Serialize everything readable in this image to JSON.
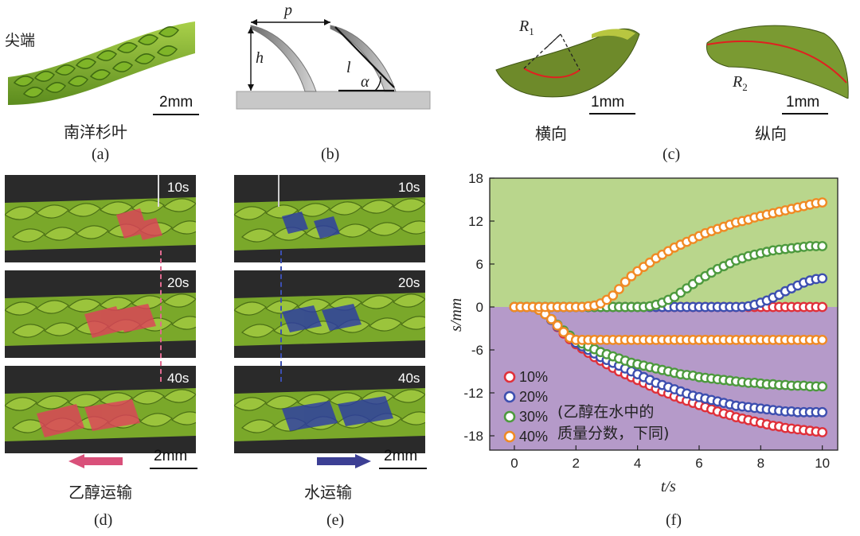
{
  "panel_a": {
    "tip_label": "尖端",
    "scale": "2mm",
    "name": "南洋杉叶",
    "caption": "(a)"
  },
  "panel_b": {
    "p": "p",
    "h": "h",
    "l": "l",
    "alpha": "α",
    "caption": "(b)"
  },
  "panel_c": {
    "r1": "R",
    "r1_sub": "1",
    "r2": "R",
    "r2_sub": "2",
    "scale1": "1mm",
    "scale2": "1mm",
    "transverse": "横向",
    "longitudinal": "纵向",
    "caption": "(c)"
  },
  "panel_d": {
    "times": [
      "10s",
      "20s",
      "40s"
    ],
    "scale": "2mm",
    "label": "乙醇运输",
    "caption": "(d)",
    "arrow_color": "#d9507a"
  },
  "panel_e": {
    "times": [
      "10s",
      "20s",
      "40s"
    ],
    "scale": "2mm",
    "label": "水运输",
    "caption": "(e)",
    "arrow_color": "#3c3f94"
  },
  "panel_f": {
    "caption": "(f)",
    "note_line1": "(乙醇在水中的",
    "note_line2": "质量分数，下同)"
  },
  "chart_data": {
    "type": "scatter",
    "xlabel": "t/s",
    "ylabel": "s/mm",
    "xlim": [
      -0.8,
      10.5
    ],
    "ylim": [
      -20,
      18
    ],
    "xticks": [
      0,
      2,
      4,
      6,
      8,
      10
    ],
    "yticks": [
      18,
      12,
      6,
      0,
      -6,
      -12,
      -18
    ],
    "background_top": "#b9d68c",
    "background_bottom": "#b59ac9",
    "legend_position": "bottom-left",
    "x": [
      0,
      0.2,
      0.4,
      0.6,
      0.8,
      1.0,
      1.2,
      1.4,
      1.6,
      1.8,
      2.0,
      2.2,
      2.4,
      2.6,
      2.8,
      3.0,
      3.2,
      3.4,
      3.6,
      3.8,
      4.0,
      4.2,
      4.4,
      4.6,
      4.8,
      5.0,
      5.2,
      5.4,
      5.6,
      5.8,
      6.0,
      6.2,
      6.4,
      6.6,
      6.8,
      7.0,
      7.2,
      7.4,
      7.6,
      7.8,
      8.0,
      8.2,
      8.4,
      8.6,
      8.8,
      9.0,
      9.2,
      9.4,
      9.6,
      9.8,
      10.0
    ],
    "series": [
      {
        "name": "10%",
        "color": "#e0303a",
        "pos": [
          0,
          0,
          0,
          0,
          0,
          0,
          0,
          0,
          0,
          0,
          0,
          0,
          0,
          0,
          0,
          0,
          0,
          0,
          0,
          0,
          0,
          0,
          0,
          0,
          0,
          0,
          0,
          0,
          0,
          0,
          0,
          0,
          0,
          0,
          0,
          0,
          0,
          0,
          0,
          0,
          0,
          0,
          0,
          0,
          0,
          0,
          0,
          0,
          0,
          0,
          0
        ],
        "neg": [
          0,
          0,
          0,
          0,
          -0.4,
          -1.0,
          -1.8,
          -2.8,
          -3.7,
          -4.5,
          -5.2,
          -5.8,
          -6.4,
          -7.0,
          -7.5,
          -8.0,
          -8.5,
          -9.0,
          -9.4,
          -9.8,
          -10.2,
          -10.6,
          -11.0,
          -11.4,
          -11.8,
          -12.1,
          -12.5,
          -12.8,
          -13.1,
          -13.4,
          -13.7,
          -14.0,
          -14.3,
          -14.6,
          -14.9,
          -15.1,
          -15.4,
          -15.6,
          -15.8,
          -16.0,
          -16.2,
          -16.4,
          -16.6,
          -16.7,
          -16.9,
          -17.0,
          -17.1,
          -17.2,
          -17.3,
          -17.4,
          -17.5
        ]
      },
      {
        "name": "20%",
        "color": "#3d4fb0",
        "pos": [
          0,
          0,
          0,
          0,
          0,
          0,
          0,
          0,
          0,
          0,
          0,
          0,
          0,
          0,
          0,
          0,
          0,
          0,
          0,
          0,
          0,
          0,
          0,
          0,
          0,
          0,
          0,
          0,
          0,
          0,
          0,
          0,
          0,
          0,
          0,
          0,
          0,
          0,
          0.1,
          0.3,
          0.6,
          0.9,
          1.3,
          1.7,
          2.2,
          2.6,
          3.0,
          3.4,
          3.7,
          3.9,
          4.0
        ],
        "neg": [
          0,
          0,
          0,
          0,
          -0.4,
          -1.0,
          -1.8,
          -2.7,
          -3.5,
          -4.3,
          -5.0,
          -5.5,
          -6.0,
          -6.5,
          -7.0,
          -7.4,
          -7.8,
          -8.2,
          -8.6,
          -9.0,
          -9.4,
          -9.8,
          -10.2,
          -10.6,
          -10.9,
          -11.2,
          -11.5,
          -11.8,
          -12.1,
          -12.4,
          -12.6,
          -12.8,
          -13.0,
          -13.2,
          -13.4,
          -13.6,
          -13.8,
          -13.9,
          -14.0,
          -14.1,
          -14.2,
          -14.3,
          -14.4,
          -14.5,
          -14.6,
          -14.6,
          -14.7,
          -14.7,
          -14.7,
          -14.7,
          -14.7
        ]
      },
      {
        "name": "30%",
        "color": "#4d9a3e",
        "pos": [
          0,
          0,
          0,
          0,
          0,
          0,
          0,
          0,
          0,
          0,
          0,
          0,
          0,
          0,
          0,
          0,
          0,
          0,
          0,
          0,
          0,
          0,
          0.1,
          0.3,
          0.6,
          1.0,
          1.4,
          2.0,
          2.6,
          3.2,
          3.8,
          4.3,
          4.8,
          5.3,
          5.7,
          6.1,
          6.5,
          6.8,
          7.1,
          7.3,
          7.5,
          7.7,
          7.9,
          8.0,
          8.1,
          8.2,
          8.3,
          8.4,
          8.5,
          8.5,
          8.5
        ],
        "neg": [
          0,
          0,
          0,
          0,
          -0.4,
          -1.0,
          -1.7,
          -2.5,
          -3.3,
          -4.0,
          -4.6,
          -5.1,
          -5.5,
          -5.9,
          -6.3,
          -6.6,
          -6.9,
          -7.2,
          -7.5,
          -7.8,
          -8.0,
          -8.2,
          -8.4,
          -8.6,
          -8.8,
          -9.0,
          -9.2,
          -9.4,
          -9.5,
          -9.6,
          -9.8,
          -9.9,
          -10.0,
          -10.1,
          -10.2,
          -10.3,
          -10.4,
          -10.5,
          -10.6,
          -10.6,
          -10.7,
          -10.8,
          -10.8,
          -10.9,
          -10.9,
          -11.0,
          -11.0,
          -11.0,
          -11.1,
          -11.1,
          -11.1
        ]
      },
      {
        "name": "40%",
        "color": "#f08a24",
        "pos": [
          0,
          0,
          0,
          0,
          0,
          0,
          0,
          0,
          0,
          0,
          0,
          0,
          0.1,
          0.2,
          0.5,
          1.0,
          1.6,
          2.5,
          3.5,
          4.3,
          5.0,
          5.6,
          6.2,
          6.8,
          7.3,
          7.8,
          8.3,
          8.7,
          9.1,
          9.5,
          9.9,
          10.3,
          10.6,
          10.9,
          11.2,
          11.5,
          11.8,
          12.0,
          12.2,
          12.5,
          12.7,
          12.9,
          13.1,
          13.3,
          13.5,
          13.7,
          13.9,
          14.1,
          14.3,
          14.5,
          14.6
        ],
        "neg": [
          0,
          0,
          0,
          0,
          -0.4,
          -1.0,
          -1.7,
          -2.6,
          -3.5,
          -4.3,
          -4.6,
          -4.6,
          -4.6,
          -4.6,
          -4.6,
          -4.6,
          -4.6,
          -4.6,
          -4.6,
          -4.6,
          -4.6,
          -4.6,
          -4.6,
          -4.6,
          -4.6,
          -4.6,
          -4.6,
          -4.6,
          -4.6,
          -4.6,
          -4.6,
          -4.6,
          -4.6,
          -4.6,
          -4.6,
          -4.6,
          -4.6,
          -4.6,
          -4.6,
          -4.6,
          -4.6,
          -4.6,
          -4.6,
          -4.6,
          -4.6,
          -4.6,
          -4.6,
          -4.6,
          -4.6,
          -4.6,
          -4.6
        ]
      }
    ]
  }
}
